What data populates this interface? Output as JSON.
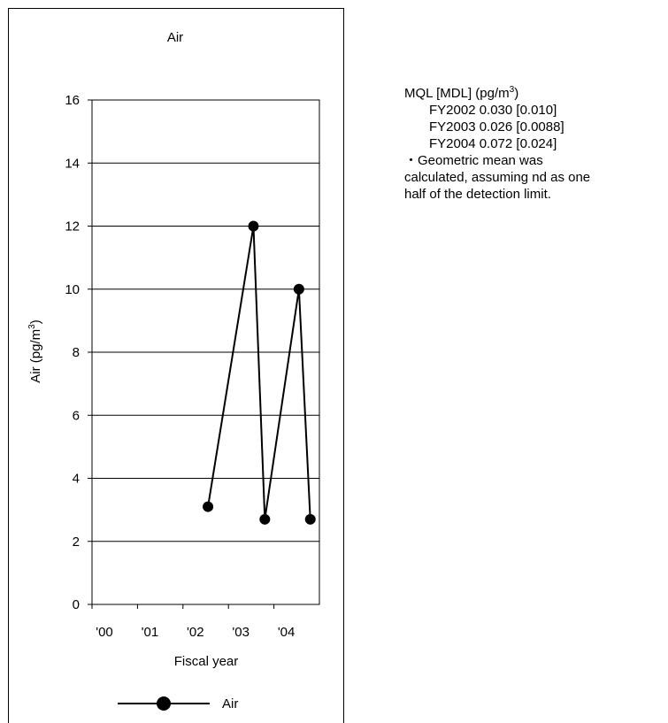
{
  "chart_data": {
    "type": "line",
    "title": "Air",
    "xlabel": "Fiscal year",
    "ylabel": "Air (pg/m",
    "ylabel_sup": "3",
    "ylabel_end": ")",
    "ylim": [
      0,
      16
    ],
    "yticks": [
      "0",
      "2",
      "4",
      "6",
      "8",
      "10",
      "12",
      "14",
      "16"
    ],
    "x_tick_labels": [
      "'00",
      "'01",
      "'02",
      "'03",
      "'04"
    ],
    "grid": true,
    "legend_placement": "bottom",
    "series": [
      {
        "name": "Air",
        "color": "#000000",
        "marker": "circle",
        "points": [
          {
            "x": 2002.55,
            "y": 3.1
          },
          {
            "x": 2003.55,
            "y": 12
          },
          {
            "x": 2003.8,
            "y": 2.7
          },
          {
            "x": 2004.55,
            "y": 10
          },
          {
            "x": 2004.8,
            "y": 2.7
          }
        ]
      }
    ]
  },
  "notes": {
    "header": "MQL [MDL] (pg/m",
    "header_sup": "3",
    "header_end": ")",
    "rows": [
      "FY2002  0.030 [0.010]",
      "FY2003  0.026 [0.0088]",
      "FY2004  0.072 [0.024]"
    ],
    "note_lines": [
      "・Geometric mean was",
      "calculated, assuming nd as one",
      "half of the detection limit."
    ]
  }
}
